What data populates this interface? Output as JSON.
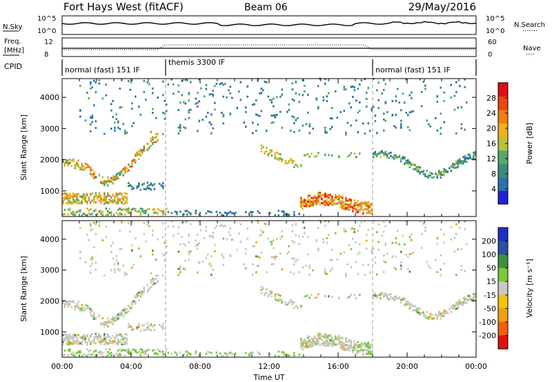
{
  "header": {
    "station": "Fort Hays West (fitACF)",
    "beam": "Beam 06",
    "date": "29/May/2016"
  },
  "noise_panel": {
    "left_label": "N.Sky",
    "right_label": "N.Search",
    "left_ticks": [
      "10^5",
      "10^0"
    ],
    "right_ticks": [
      "10^5",
      "10^0"
    ]
  },
  "freq_panel": {
    "left_label_line1": "Freq.",
    "left_label_line2": "[MHz]",
    "right_label": "Nave",
    "left_ticks": [
      "12",
      "8"
    ],
    "right_ticks": [
      "60",
      "0"
    ]
  },
  "cpid": {
    "label": "CPID",
    "segments": [
      {
        "text": "normal (fast) 151 IF",
        "start_hour": 0
      },
      {
        "text": "themis 3300 IF",
        "start_hour": 6
      },
      {
        "text": "normal (fast) 151 IF",
        "start_hour": 18
      }
    ]
  },
  "colors": {
    "power": [
      "#2020d8",
      "#2f6fb0",
      "#3d8c7a",
      "#55a86a",
      "#b8c23a",
      "#f2b01c",
      "#f07e10",
      "#e84810",
      "#e01010"
    ],
    "velocity": [
      "#e01010",
      "#f06010",
      "#f0a010",
      "#f3c400",
      "#c8c8c0",
      "#7cc838",
      "#3c9040",
      "#2a4fa8",
      "#1f2fc0"
    ]
  },
  "chart_data": [
    {
      "type": "heatmap",
      "name": "power",
      "ylabel": "Slant Range [km]",
      "xlabel": "",
      "xlim_hours": [
        0,
        24
      ],
      "ylim_km": [
        180,
        4600
      ],
      "yticks": [
        1000,
        2000,
        3000,
        4000
      ],
      "colorbar": {
        "label": "Power [dB]",
        "range": [
          0,
          32
        ],
        "ticks": [
          4,
          8,
          12,
          16,
          20,
          24,
          28
        ]
      }
    },
    {
      "type": "heatmap",
      "name": "velocity",
      "ylabel": "Slant Range [km]",
      "xlabel": "Time UT",
      "xlim_hours": [
        0,
        24
      ],
      "ylim_km": [
        180,
        4600
      ],
      "yticks": [
        1000,
        2000,
        3000,
        4000
      ],
      "xticks": [
        "00:00",
        "04:00",
        "08:00",
        "12:00",
        "16:00",
        "20:00",
        "00:00"
      ],
      "colorbar": {
        "label": "Velocity [m s⁻¹]",
        "ticks": [
          "200",
          "100",
          "50",
          "15",
          "-15",
          "-50",
          "-100",
          "-200"
        ]
      }
    }
  ]
}
